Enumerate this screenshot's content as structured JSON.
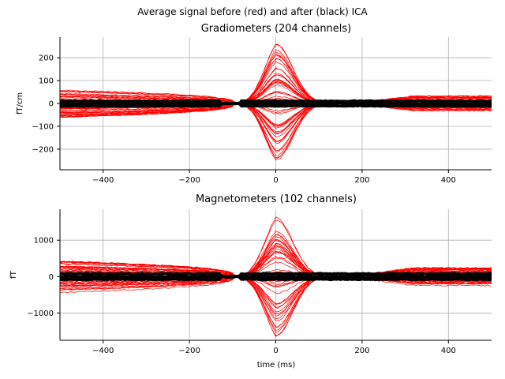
{
  "figure": {
    "suptitle": "Average signal before (red) and after (black) ICA",
    "colors": {
      "before": "#ff0000",
      "after": "#000000",
      "grid": "#b0b0b0",
      "axis": "#000000"
    }
  },
  "chart_data": [
    {
      "type": "line",
      "title": "Gradiometers (204 channels)",
      "xlabel": "",
      "ylabel": "fT/cm",
      "xlim": [
        -500,
        500
      ],
      "ylim": [
        -290,
        290
      ],
      "xticks": [
        -400,
        -200,
        0,
        200,
        400
      ],
      "xtick_labels": [
        "−400",
        "−200",
        "0",
        "200",
        "400"
      ],
      "yticks": [
        -200,
        -100,
        0,
        100,
        200
      ],
      "ytick_labels": [
        "−200",
        "−100",
        "0",
        "100",
        "200"
      ],
      "grid": true,
      "series_summary": {
        "before": {
          "color": "red",
          "n_lines": 60,
          "baseline_envelope": 60,
          "peak_time_ms": 0,
          "peak_amplitude": 265,
          "crossing_time_ms": -95
        },
        "after": {
          "color": "black",
          "band_halfwidth": 14
        }
      }
    },
    {
      "type": "line",
      "title": "Magnetometers (102 channels)",
      "xlabel": "time (ms)",
      "ylabel": "fT",
      "xlim": [
        -500,
        500
      ],
      "ylim": [
        -1750,
        1850
      ],
      "xticks": [
        -400,
        -200,
        0,
        200,
        400
      ],
      "xtick_labels": [
        "−400",
        "−200",
        "0",
        "200",
        "400"
      ],
      "yticks": [
        -1000,
        0,
        1000
      ],
      "ytick_labels": [
        "−1000",
        "0",
        "1000"
      ],
      "grid": true,
      "series_summary": {
        "before": {
          "color": "red",
          "n_lines": 48,
          "baseline_envelope": 450,
          "peak_time_ms": 0,
          "peak_amplitude": 1700,
          "crossing_time_ms": -95
        },
        "after": {
          "color": "black",
          "band_halfwidth": 110
        }
      }
    }
  ]
}
